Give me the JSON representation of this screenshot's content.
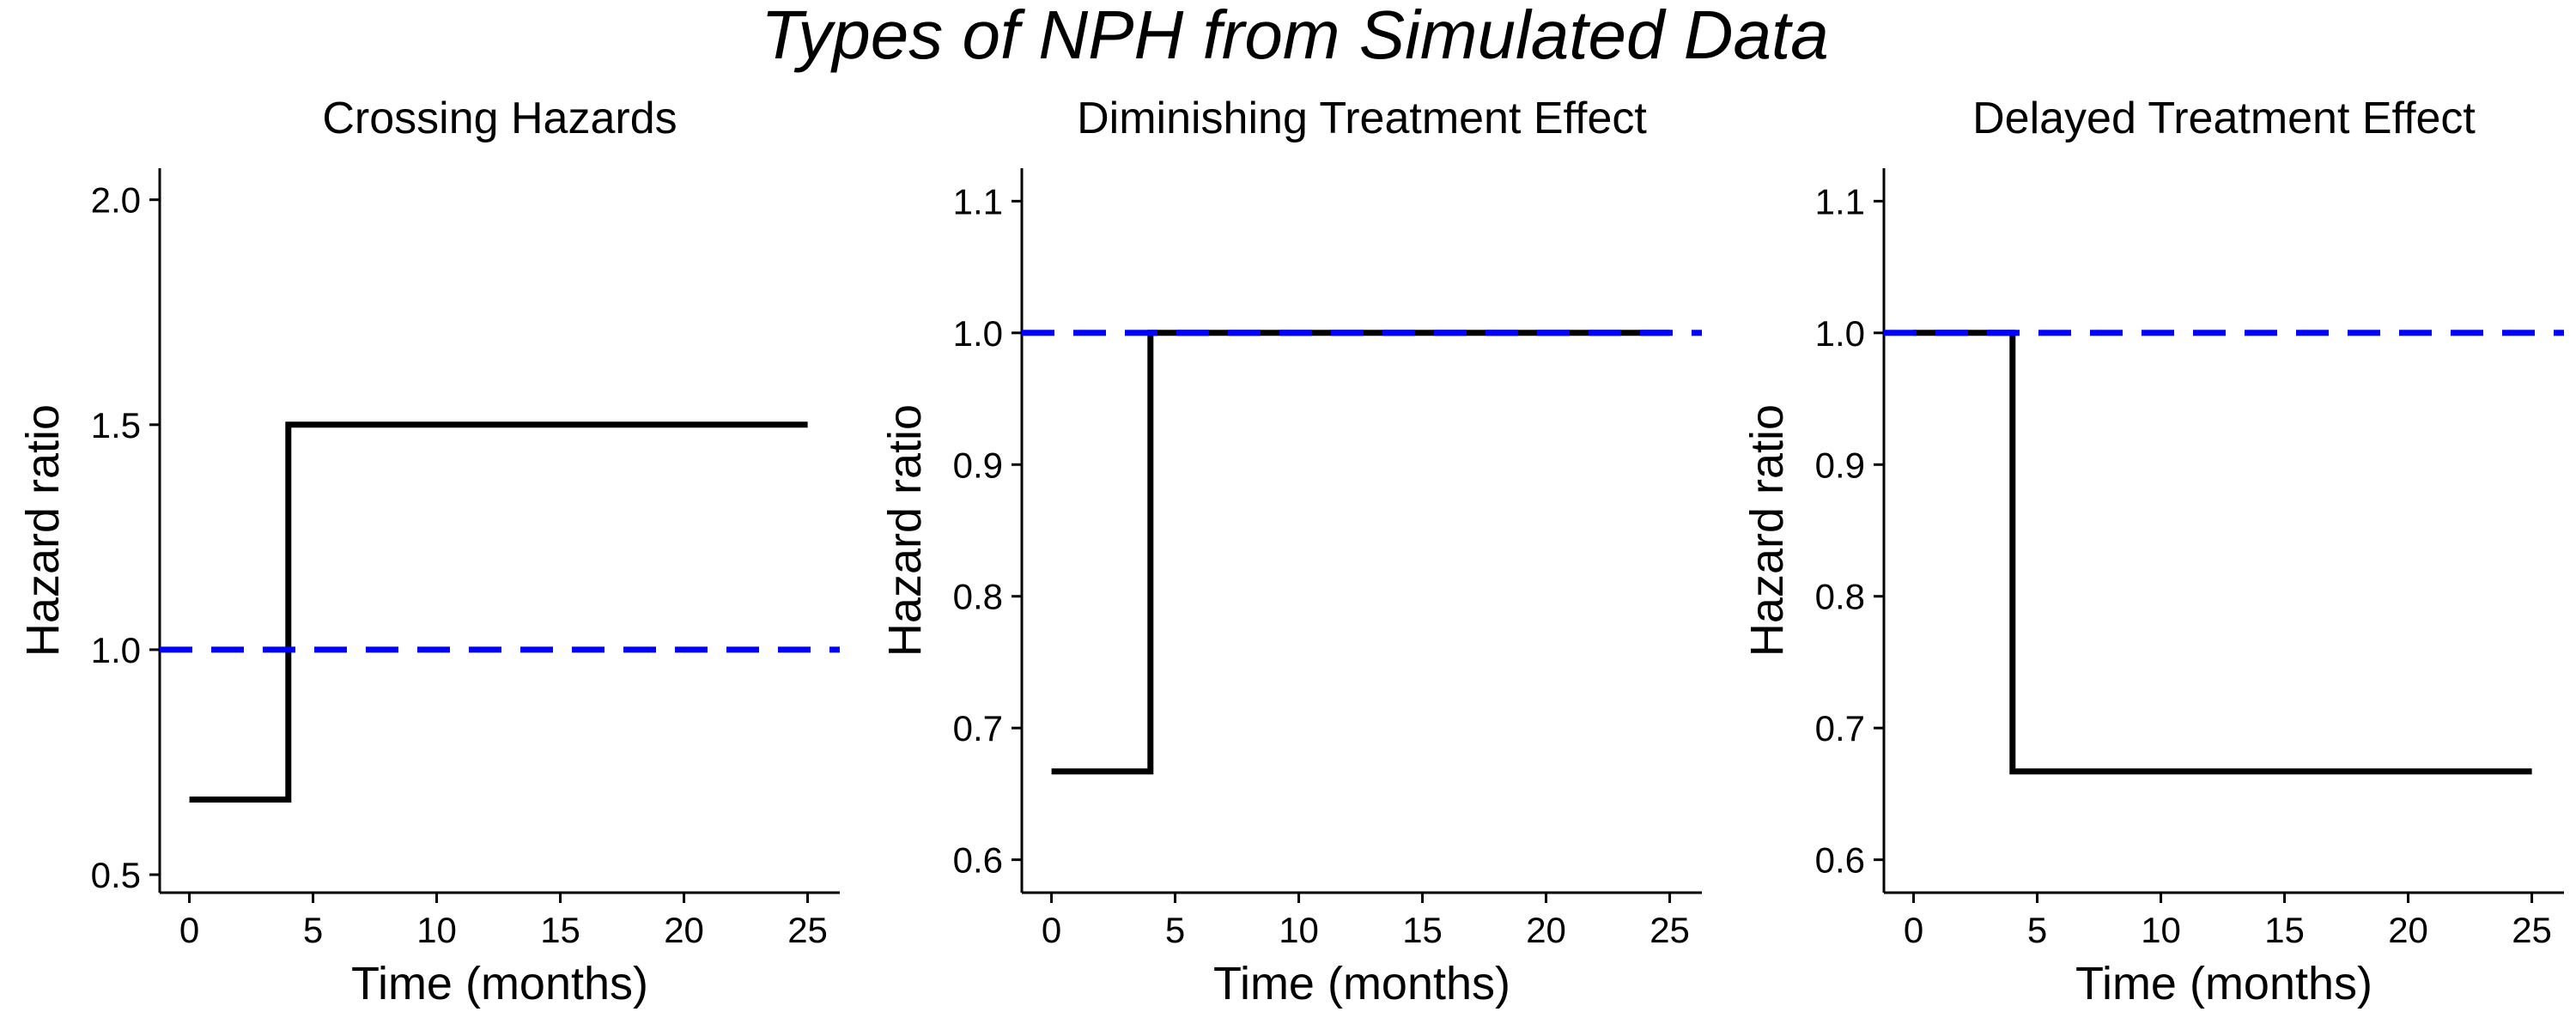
{
  "figure_title": "Types of NPH from Simulated Data",
  "chart_data": [
    {
      "type": "line",
      "step": true,
      "title": "Crossing Hazards",
      "xlabel": "Time (months)",
      "ylabel": "Hazard ratio",
      "xlim": [
        -1.2,
        26.3
      ],
      "ylim": [
        0.46,
        2.07
      ],
      "xticks": [
        0,
        5,
        10,
        15,
        20,
        25
      ],
      "yticks": [
        0.5,
        1.0,
        1.5,
        2.0
      ],
      "ytick_labels": [
        "0.5",
        "1.0",
        "1.5",
        "2.0"
      ],
      "grid": false,
      "series": [
        {
          "color": "#000000",
          "style": "solid",
          "x": [
            0,
            4,
            4,
            25
          ],
          "y": [
            0.667,
            0.667,
            1.5,
            1.5
          ]
        },
        {
          "color": "#0000ff",
          "style": "dashed",
          "x": [
            -1.2,
            26.3
          ],
          "y": [
            1.0,
            1.0
          ]
        }
      ]
    },
    {
      "type": "line",
      "step": true,
      "title": "Diminishing Treatment Effect",
      "xlabel": "Time (months)",
      "ylabel": "Hazard ratio",
      "xlim": [
        -1.2,
        26.3
      ],
      "ylim": [
        0.575,
        1.125
      ],
      "xticks": [
        0,
        5,
        10,
        15,
        20,
        25
      ],
      "yticks": [
        0.6,
        0.7,
        0.8,
        0.9,
        1.0,
        1.1
      ],
      "ytick_labels": [
        "0.6",
        "0.7",
        "0.8",
        "0.9",
        "1.0",
        "1.1"
      ],
      "grid": false,
      "series": [
        {
          "color": "#000000",
          "style": "solid",
          "x": [
            0,
            4,
            4,
            25
          ],
          "y": [
            0.667,
            0.667,
            1.0,
            1.0
          ]
        },
        {
          "color": "#0000ff",
          "style": "dashed",
          "x": [
            -1.2,
            26.3
          ],
          "y": [
            1.0,
            1.0
          ]
        }
      ]
    },
    {
      "type": "line",
      "step": true,
      "title": "Delayed Treatment Effect",
      "xlabel": "Time (months)",
      "ylabel": "Hazard ratio",
      "xlim": [
        -1.2,
        26.3
      ],
      "ylim": [
        0.575,
        1.125
      ],
      "xticks": [
        0,
        5,
        10,
        15,
        20,
        25
      ],
      "yticks": [
        0.6,
        0.7,
        0.8,
        0.9,
        1.0,
        1.1
      ],
      "ytick_labels": [
        "0.6",
        "0.7",
        "0.8",
        "0.9",
        "1.0",
        "1.1"
      ],
      "grid": false,
      "series": [
        {
          "color": "#000000",
          "style": "solid",
          "x": [
            0,
            4,
            4,
            25
          ],
          "y": [
            1.0,
            1.0,
            0.667,
            0.667
          ]
        },
        {
          "color": "#0000ff",
          "style": "dashed",
          "x": [
            -1.2,
            26.3
          ],
          "y": [
            1.0,
            1.0
          ]
        }
      ]
    }
  ]
}
